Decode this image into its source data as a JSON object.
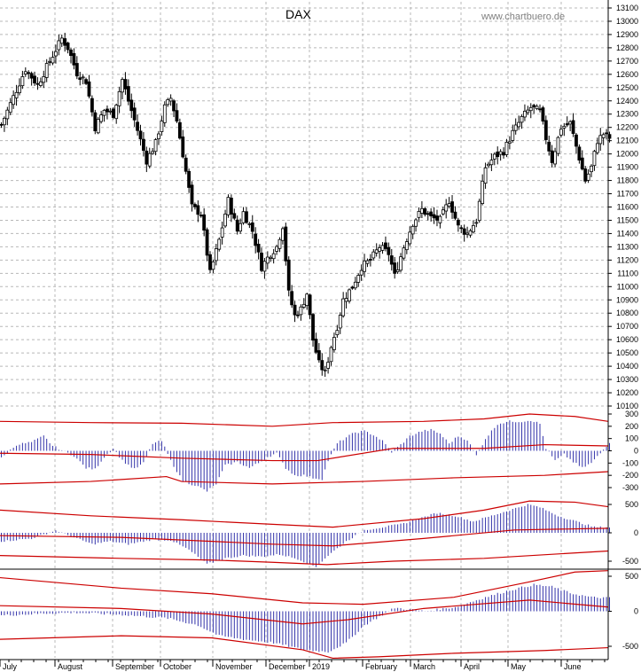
{
  "chart_data": {
    "type": "candlestick",
    "title": "DAX",
    "watermark": "www.chartbuero.de",
    "months": [
      "July",
      "August",
      "September",
      "October",
      "November",
      "December",
      "2019",
      "February",
      "March",
      "April",
      "May",
      "June"
    ],
    "colors": {
      "candle": "#000000",
      "histogram": "#3333aa",
      "band": "#cc0000",
      "grid": "#b8b8b8"
    },
    "price_panel": {
      "ylim": [
        10100,
        13100
      ],
      "ticks": [
        10100,
        10200,
        10300,
        10400,
        10500,
        10600,
        10700,
        10800,
        10900,
        11000,
        11100,
        11200,
        11300,
        11400,
        11500,
        11600,
        11700,
        11800,
        11900,
        12000,
        12100,
        12200,
        12300,
        12400,
        12500,
        12600,
        12700,
        12800,
        12900,
        13000,
        13100
      ],
      "close_path": [
        [
          0,
          12220
        ],
        [
          4,
          12430
        ],
        [
          8,
          12640
        ],
        [
          12,
          12520
        ],
        [
          16,
          12700
        ],
        [
          20,
          12870
        ],
        [
          22,
          12800
        ],
        [
          25,
          12610
        ],
        [
          28,
          12550
        ],
        [
          31,
          12200
        ],
        [
          34,
          12330
        ],
        [
          37,
          12300
        ],
        [
          40,
          12560
        ],
        [
          42,
          12400
        ],
        [
          45,
          12180
        ],
        [
          48,
          11950
        ],
        [
          51,
          12080
        ],
        [
          54,
          12350
        ],
        [
          56,
          12420
        ],
        [
          58,
          12250
        ],
        [
          60,
          12000
        ],
        [
          63,
          11600
        ],
        [
          66,
          11550
        ],
        [
          69,
          11100
        ],
        [
          72,
          11350
        ],
        [
          75,
          11650
        ],
        [
          78,
          11420
        ],
        [
          80,
          11560
        ],
        [
          83,
          11420
        ],
        [
          86,
          11150
        ],
        [
          89,
          11250
        ],
        [
          91,
          11300
        ],
        [
          93,
          11460
        ],
        [
          95,
          10950
        ],
        [
          97,
          10780
        ],
        [
          99,
          10830
        ],
        [
          101,
          10950
        ],
        [
          103,
          10600
        ],
        [
          105,
          10420
        ],
        [
          107,
          10350
        ],
        [
          109,
          10550
        ],
        [
          111,
          10700
        ],
        [
          113,
          10900
        ],
        [
          116,
          11000
        ],
        [
          119,
          11150
        ],
        [
          122,
          11200
        ],
        [
          125,
          11300
        ],
        [
          128,
          11250
        ],
        [
          130,
          11080
        ],
        [
          133,
          11300
        ],
        [
          136,
          11480
        ],
        [
          139,
          11580
        ],
        [
          142,
          11520
        ],
        [
          145,
          11500
        ],
        [
          148,
          11650
        ],
        [
          151,
          11450
        ],
        [
          154,
          11400
        ],
        [
          157,
          11500
        ],
        [
          160,
          11900
        ],
        [
          163,
          11980
        ],
        [
          166,
          12020
        ],
        [
          169,
          12160
        ],
        [
          172,
          12270
        ],
        [
          175,
          12350
        ],
        [
          178,
          12320
        ],
        [
          180,
          12120
        ],
        [
          182,
          11950
        ],
        [
          185,
          12200
        ],
        [
          188,
          12230
        ],
        [
          191,
          11970
        ],
        [
          193,
          11800
        ],
        [
          195,
          11900
        ],
        [
          197,
          12100
        ],
        [
          199,
          12150
        ],
        [
          201,
          12120
        ]
      ]
    },
    "osc_panel_1": {
      "ylim": [
        -300,
        300
      ],
      "ticks": [
        -300,
        -200,
        -100,
        0,
        100,
        200,
        300
      ],
      "hist_path": [
        [
          0,
          -60
        ],
        [
          5,
          50
        ],
        [
          10,
          70
        ],
        [
          14,
          120
        ],
        [
          17,
          40
        ],
        [
          20,
          5
        ],
        [
          24,
          -40
        ],
        [
          28,
          -140
        ],
        [
          31,
          -150
        ],
        [
          34,
          -50
        ],
        [
          37,
          20
        ],
        [
          40,
          -80
        ],
        [
          44,
          -150
        ],
        [
          47,
          -100
        ],
        [
          50,
          60
        ],
        [
          53,
          80
        ],
        [
          56,
          -80
        ],
        [
          60,
          -250
        ],
        [
          64,
          -280
        ],
        [
          68,
          -330
        ],
        [
          71,
          -270
        ],
        [
          74,
          -120
        ],
        [
          78,
          -90
        ],
        [
          82,
          -140
        ],
        [
          85,
          -100
        ],
        [
          88,
          -50
        ],
        [
          91,
          -20
        ],
        [
          94,
          -140
        ],
        [
          97,
          -200
        ],
        [
          100,
          -200
        ],
        [
          103,
          -220
        ],
        [
          106,
          -230
        ],
        [
          108,
          -80
        ],
        [
          111,
          60
        ],
        [
          114,
          110
        ],
        [
          117,
          150
        ],
        [
          120,
          160
        ],
        [
          123,
          130
        ],
        [
          126,
          80
        ],
        [
          129,
          -10
        ],
        [
          132,
          50
        ],
        [
          135,
          120
        ],
        [
          139,
          160
        ],
        [
          142,
          170
        ],
        [
          145,
          140
        ],
        [
          148,
          60
        ],
        [
          151,
          120
        ],
        [
          154,
          90
        ],
        [
          157,
          -40
        ],
        [
          160,
          100
        ],
        [
          164,
          220
        ],
        [
          168,
          240
        ],
        [
          172,
          240
        ],
        [
          175,
          250
        ],
        [
          178,
          220
        ],
        [
          180,
          20
        ],
        [
          183,
          -80
        ],
        [
          186,
          -30
        ],
        [
          189,
          -90
        ],
        [
          192,
          -140
        ],
        [
          195,
          -100
        ],
        [
          198,
          -20
        ],
        [
          201,
          70
        ]
      ],
      "band_upper": [
        [
          0,
          240
        ],
        [
          30,
          230
        ],
        [
          60,
          225
        ],
        [
          90,
          200
        ],
        [
          110,
          230
        ],
        [
          140,
          240
        ],
        [
          160,
          260
        ],
        [
          175,
          300
        ],
        [
          190,
          280
        ],
        [
          201,
          240
        ]
      ],
      "band_mid": [
        [
          0,
          -20
        ],
        [
          30,
          -30
        ],
        [
          60,
          -60
        ],
        [
          90,
          -80
        ],
        [
          105,
          -80
        ],
        [
          130,
          20
        ],
        [
          160,
          20
        ],
        [
          180,
          50
        ],
        [
          201,
          40
        ]
      ],
      "band_lower": [
        [
          0,
          -270
        ],
        [
          30,
          -250
        ],
        [
          55,
          -210
        ],
        [
          60,
          -250
        ],
        [
          90,
          -270
        ],
        [
          120,
          -250
        ],
        [
          150,
          -220
        ],
        [
          180,
          -200
        ],
        [
          201,
          -170
        ]
      ]
    },
    "osc_panel_2": {
      "ylim": [
        -500,
        500
      ],
      "ticks": [
        -500,
        0,
        500
      ],
      "hist_path": [
        [
          0,
          -150
        ],
        [
          10,
          -100
        ],
        [
          18,
          40
        ],
        [
          24,
          -80
        ],
        [
          30,
          -200
        ],
        [
          36,
          -150
        ],
        [
          42,
          -200
        ],
        [
          50,
          -120
        ],
        [
          56,
          -130
        ],
        [
          62,
          -300
        ],
        [
          68,
          -550
        ],
        [
          74,
          -450
        ],
        [
          80,
          -400
        ],
        [
          86,
          -420
        ],
        [
          92,
          -380
        ],
        [
          98,
          -460
        ],
        [
          104,
          -600
        ],
        [
          108,
          -400
        ],
        [
          114,
          -150
        ],
        [
          120,
          50
        ],
        [
          126,
          100
        ],
        [
          132,
          150
        ],
        [
          138,
          250
        ],
        [
          144,
          350
        ],
        [
          150,
          300
        ],
        [
          156,
          200
        ],
        [
          162,
          300
        ],
        [
          168,
          400
        ],
        [
          174,
          500
        ],
        [
          178,
          450
        ],
        [
          184,
          300
        ],
        [
          190,
          200
        ],
        [
          196,
          100
        ],
        [
          201,
          100
        ]
      ],
      "band_upper": [
        [
          0,
          400
        ],
        [
          30,
          300
        ],
        [
          60,
          230
        ],
        [
          90,
          150
        ],
        [
          110,
          100
        ],
        [
          140,
          250
        ],
        [
          160,
          400
        ],
        [
          175,
          560
        ],
        [
          190,
          540
        ],
        [
          201,
          460
        ]
      ],
      "band_mid": [
        [
          0,
          -50
        ],
        [
          40,
          -80
        ],
        [
          70,
          -150
        ],
        [
          90,
          -200
        ],
        [
          110,
          -230
        ],
        [
          140,
          -100
        ],
        [
          170,
          50
        ],
        [
          201,
          80
        ]
      ],
      "band_lower": [
        [
          0,
          -400
        ],
        [
          40,
          -450
        ],
        [
          70,
          -480
        ],
        [
          90,
          -520
        ],
        [
          108,
          -560
        ],
        [
          130,
          -500
        ],
        [
          160,
          -450
        ],
        [
          201,
          -320
        ]
      ]
    },
    "osc_panel_3": {
      "ylim": [
        -500,
        500
      ],
      "ticks": [
        -500,
        0,
        500
      ],
      "hist_path": [
        [
          0,
          -60
        ],
        [
          15,
          -30
        ],
        [
          25,
          -20
        ],
        [
          40,
          -50
        ],
        [
          55,
          -100
        ],
        [
          65,
          -200
        ],
        [
          72,
          -350
        ],
        [
          80,
          -400
        ],
        [
          90,
          -450
        ],
        [
          100,
          -550
        ],
        [
          108,
          -580
        ],
        [
          114,
          -450
        ],
        [
          120,
          -200
        ],
        [
          130,
          50
        ],
        [
          140,
          0
        ],
        [
          150,
          60
        ],
        [
          160,
          200
        ],
        [
          168,
          300
        ],
        [
          176,
          380
        ],
        [
          182,
          350
        ],
        [
          188,
          260
        ],
        [
          195,
          200
        ],
        [
          201,
          190
        ]
      ],
      "band_upper": [
        [
          0,
          480
        ],
        [
          40,
          330
        ],
        [
          70,
          250
        ],
        [
          100,
          120
        ],
        [
          120,
          100
        ],
        [
          150,
          200
        ],
        [
          175,
          420
        ],
        [
          190,
          560
        ],
        [
          201,
          580
        ]
      ],
      "band_mid": [
        [
          0,
          80
        ],
        [
          40,
          40
        ],
        [
          70,
          -40
        ],
        [
          100,
          -180
        ],
        [
          115,
          -120
        ],
        [
          140,
          40
        ],
        [
          175,
          160
        ],
        [
          201,
          60
        ]
      ],
      "band_lower": [
        [
          0,
          -400
        ],
        [
          40,
          -350
        ],
        [
          70,
          -380
        ],
        [
          100,
          -550
        ],
        [
          110,
          -670
        ],
        [
          125,
          -650
        ],
        [
          150,
          -600
        ],
        [
          180,
          -560
        ],
        [
          201,
          -520
        ]
      ]
    }
  }
}
